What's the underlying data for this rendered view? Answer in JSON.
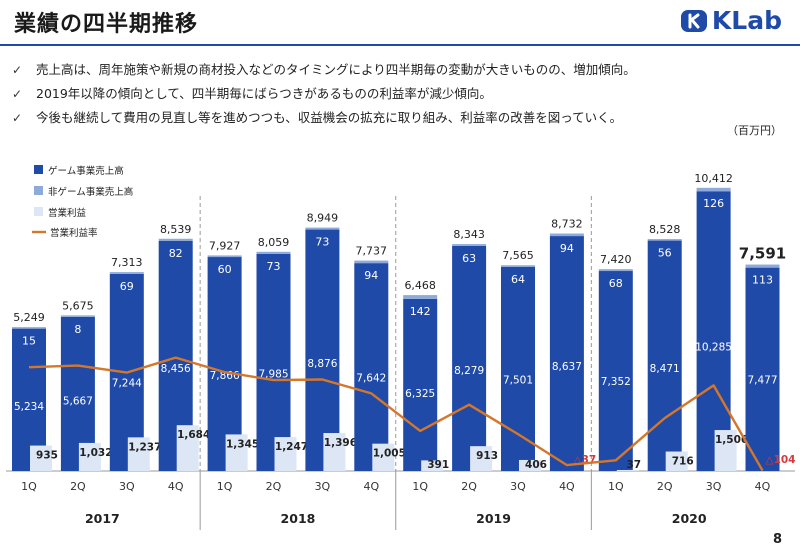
{
  "header": {
    "title": "業績の四半期推移",
    "logo_text": "KLab",
    "page_number": "8"
  },
  "bullets": [
    "売上高は、周年施策や新規の商材投入などのタイミングにより四半期毎の変動が大きいものの、増加傾向。",
    "2019年以降の傾向として、四半期毎にばらつきがあるものの利益率が減少傾向。",
    "今後も継続して費用の見直し等を進めつつも、収益機会の拡充に取り組み、利益率の改善を図っていく。"
  ],
  "chart_data": {
    "type": "bar",
    "unit_label": "（百万円）",
    "categories": [
      "1Q",
      "2Q",
      "3Q",
      "4Q",
      "1Q",
      "2Q",
      "3Q",
      "4Q",
      "1Q",
      "2Q",
      "3Q",
      "4Q",
      "1Q",
      "2Q",
      "3Q",
      "4Q"
    ],
    "years": [
      "2017",
      "2018",
      "2019",
      "2020"
    ],
    "legend": [
      "ゲーム事業売上高",
      "非ゲーム事業売上高",
      "営業利益",
      "営業利益率"
    ],
    "series": [
      {
        "name": "ゲーム事業売上高",
        "color": "#1f4aa8",
        "values": [
          5234,
          5667,
          7244,
          8456,
          7866,
          7985,
          8876,
          7642,
          6325,
          8279,
          7501,
          8637,
          7352,
          8471,
          10285,
          7477
        ]
      },
      {
        "name": "非ゲーム事業売上高",
        "color": "#8eaadb",
        "values": [
          15,
          8,
          69,
          82,
          60,
          73,
          73,
          94,
          142,
          63,
          64,
          94,
          68,
          56,
          126,
          113
        ]
      },
      {
        "name": "営業利益",
        "color": "#dce6f4",
        "values": [
          935,
          1032,
          1237,
          1684,
          1345,
          1247,
          1396,
          1005,
          391,
          913,
          406,
          -37,
          37,
          716,
          1506,
          -104
        ]
      },
      {
        "name": "営業利益率",
        "color": "#d4772a",
        "values": [
          17.9,
          18.2,
          16.9,
          19.7,
          17.0,
          15.5,
          15.6,
          13.0,
          6.0,
          10.9,
          5.4,
          -0.4,
          0.5,
          8.4,
          14.5,
          -1.4
        ]
      }
    ],
    "totals": [
      "5,249",
      "5,675",
      "7,313",
      "8,539",
      "7,927",
      "8,059",
      "8,949",
      "7,737",
      "6,468",
      "8,343",
      "7,565",
      "8,732",
      "7,420",
      "8,528",
      "10,412",
      "7,591"
    ],
    "game_labels": [
      "5,234",
      "5,667",
      "7,244",
      "8,456",
      "7,866",
      "7,985",
      "8,876",
      "7,642",
      "6,325",
      "8,279",
      "7,501",
      "8,637",
      "7,352",
      "8,471",
      "10,285",
      "7,477"
    ],
    "nongame_labels": [
      "15",
      "8",
      "69",
      "82",
      "60",
      "73",
      "73",
      "94",
      "142",
      "63",
      "64",
      "94",
      "68",
      "56",
      "126",
      "113"
    ],
    "profit_labels": [
      "935",
      "1,032",
      "1,237",
      "1,684",
      "1,345",
      "1,247",
      "1,396",
      "1,005",
      "391",
      "913",
      "406",
      "△37",
      "37",
      "716",
      "1,506",
      "△104"
    ],
    "ylim": [
      0,
      11000
    ]
  }
}
